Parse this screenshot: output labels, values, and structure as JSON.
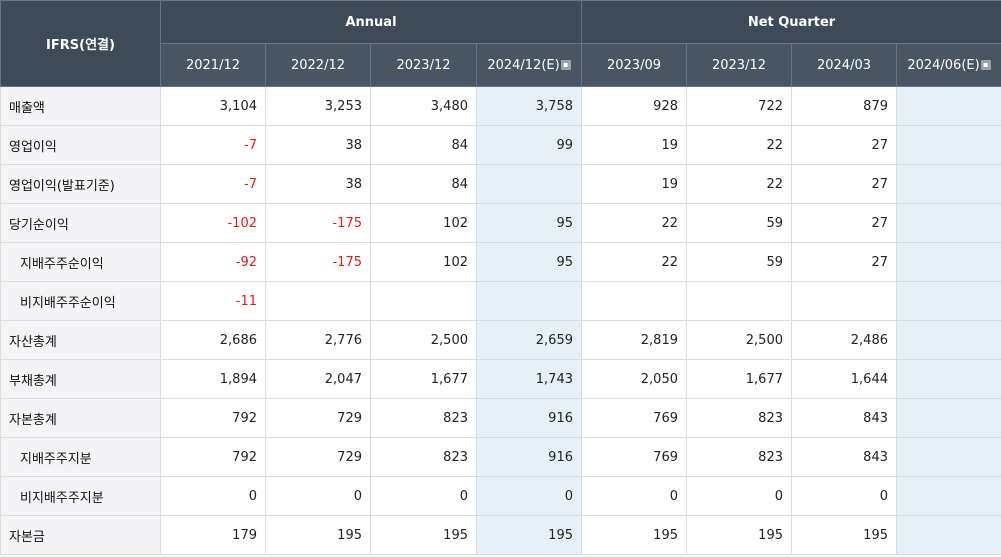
{
  "header": {
    "label": "IFRS(연결)",
    "annual_label": "Annual",
    "quarter_label": "Net Quarter",
    "annual_periods": [
      "2021/12",
      "2022/12",
      "2023/12",
      "2024/12(E)"
    ],
    "quarter_periods": [
      "2023/09",
      "2023/12",
      "2024/03",
      "2024/06(E)"
    ]
  },
  "rows": [
    {
      "label": "매출액",
      "values": [
        "3,104",
        "3,253",
        "3,480",
        "3,758",
        "928",
        "722",
        "879",
        ""
      ]
    },
    {
      "label": "영업이익",
      "values": [
        "-7",
        "38",
        "84",
        "99",
        "19",
        "22",
        "27",
        ""
      ]
    },
    {
      "label": "영업이익(발표기준)",
      "values": [
        "-7",
        "38",
        "84",
        "",
        "19",
        "22",
        "27",
        ""
      ]
    },
    {
      "label": "당기순이익",
      "values": [
        "-102",
        "-175",
        "102",
        "95",
        "22",
        "59",
        "27",
        ""
      ]
    },
    {
      "label": "지배주주순이익",
      "values": [
        "-92",
        "-175",
        "102",
        "95",
        "22",
        "59",
        "27",
        ""
      ]
    },
    {
      "label": "비지배주주순이익",
      "values": [
        "-11",
        "",
        "",
        "",
        "",
        "",
        "",
        ""
      ]
    },
    {
      "label": "자산총계",
      "values": [
        "2,686",
        "2,776",
        "2,500",
        "2,659",
        "2,819",
        "2,500",
        "2,486",
        ""
      ]
    },
    {
      "label": "부채총계",
      "values": [
        "1,894",
        "2,047",
        "1,677",
        "1,743",
        "2,050",
        "1,677",
        "1,644",
        ""
      ]
    },
    {
      "label": "자본총계",
      "values": [
        "792",
        "729",
        "823",
        "916",
        "769",
        "823",
        "843",
        ""
      ]
    },
    {
      "label": "지배주주지분",
      "values": [
        "792",
        "729",
        "823",
        "916",
        "769",
        "823",
        "843",
        ""
      ]
    },
    {
      "label": "비지배주주지분",
      "values": [
        "0",
        "0",
        "0",
        "0",
        "0",
        "0",
        "0",
        ""
      ]
    },
    {
      "label": "자본금",
      "values": [
        "179",
        "195",
        "195",
        "195",
        "195",
        "195",
        "195",
        ""
      ]
    }
  ],
  "colors": {
    "negative": "#e41b1b",
    "estimate_bg": "#e6f1f7",
    "header_bg": "#4a5563"
  }
}
